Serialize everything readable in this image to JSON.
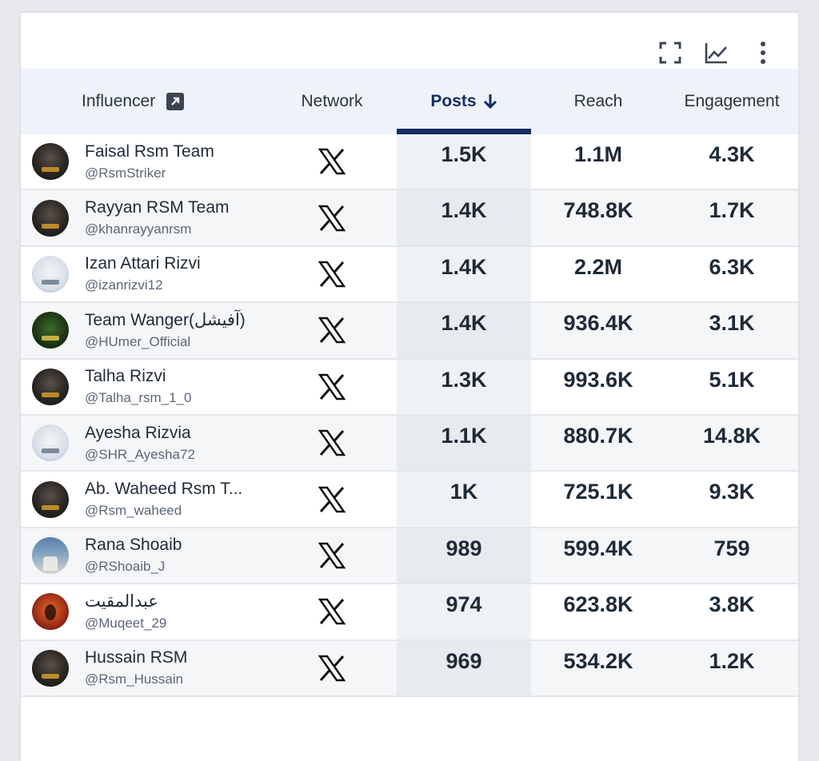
{
  "table": {
    "columns": {
      "influencer": "Influencer",
      "network": "Network",
      "posts": "Posts",
      "reach": "Reach",
      "engagement": "Engagement"
    },
    "sort": {
      "column": "posts",
      "direction": "descending"
    },
    "rows": [
      {
        "name": "Faisal Rsm Team",
        "handle": "@RsmStriker",
        "network": "X",
        "posts": "1.5K",
        "reach": "1.1M",
        "engagement": "4.3K"
      },
      {
        "name": "Rayyan RSM Team",
        "handle": "@khanrayyanrsm",
        "network": "X",
        "posts": "1.4K",
        "reach": "748.8K",
        "engagement": "1.7K"
      },
      {
        "name": "Izan Attari Rizvi",
        "handle": "@izanrizvi12",
        "network": "X",
        "posts": "1.4K",
        "reach": "2.2M",
        "engagement": "6.3K"
      },
      {
        "name": "Team Wanger(آفیشل)",
        "handle": "@HUmer_Official",
        "network": "X",
        "posts": "1.4K",
        "reach": "936.4K",
        "engagement": "3.1K"
      },
      {
        "name": "Talha Rizvi",
        "handle": "@Talha_rsm_1_0",
        "network": "X",
        "posts": "1.3K",
        "reach": "993.6K",
        "engagement": "5.1K"
      },
      {
        "name": "Ayesha Rizvia",
        "handle": "@SHR_Ayesha72",
        "network": "X",
        "posts": "1.1K",
        "reach": "880.7K",
        "engagement": "14.8K"
      },
      {
        "name": "Ab. Waheed Rsm T...",
        "handle": "@Rsm_waheed",
        "network": "X",
        "posts": "1K",
        "reach": "725.1K",
        "engagement": "9.3K"
      },
      {
        "name": "Rana Shoaib",
        "handle": "@RShoaib_J",
        "network": "X",
        "posts": "989",
        "reach": "599.4K",
        "engagement": "759"
      },
      {
        "name": "عبدالمقیت",
        "handle": "@Muqeet_29",
        "network": "X",
        "posts": "974",
        "reach": "623.8K",
        "engagement": "3.8K"
      },
      {
        "name": "Hussain RSM",
        "handle": "@Rsm_Hussain",
        "network": "X",
        "posts": "969",
        "reach": "534.2K",
        "engagement": "1.2K"
      }
    ]
  },
  "icons": {
    "toolbar": [
      "fullscreen-icon",
      "line-chart-icon",
      "more-vertical-icon"
    ],
    "header": [
      "external-link-icon",
      "arrow-down-icon"
    ],
    "network": "x-logo-icon"
  },
  "colors": {
    "accent": "#142e63",
    "header_bg": "#eef3fb",
    "text": "#1f2a37"
  }
}
